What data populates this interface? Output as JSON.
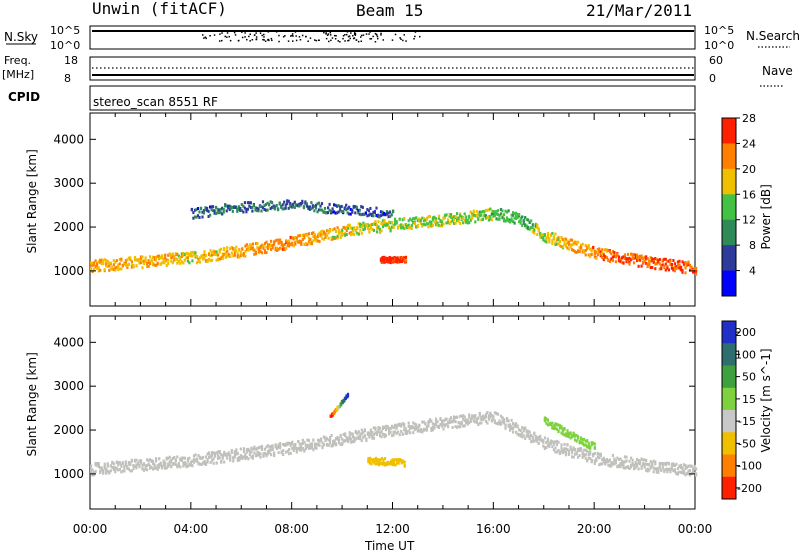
{
  "header": {
    "station": "Unwin (fitACF)",
    "beam": "Beam 15",
    "date": "21/Mar/2011"
  },
  "strip_panels": {
    "nsky": {
      "label": "N.Sky",
      "left_ticks": [
        "10^5",
        "10^0"
      ],
      "right_ticks": [
        "10^5",
        "10^0"
      ],
      "right_label": "N.Search"
    },
    "freq": {
      "label_top": "Freq.",
      "label_unit": "[MHz]",
      "left_ticks": [
        "18",
        "8"
      ],
      "right_ticks": [
        "60",
        "0"
      ],
      "right_label": "Nave"
    },
    "cpid": {
      "label": "CPID",
      "text": "stereo_scan 8551 RF"
    }
  },
  "chart_data": [
    {
      "type": "heatmap",
      "title": "",
      "xlabel": "",
      "ylabel": "Slant Range [km]",
      "xlim": [
        0,
        24
      ],
      "ylim": [
        200,
        4600
      ],
      "x_ticks": [
        "00:00",
        "04:00",
        "08:00",
        "12:00",
        "16:00",
        "20:00",
        "00:00"
      ],
      "y_ticks": [
        1000,
        2000,
        3000,
        4000
      ],
      "colorbar": {
        "label": "Power [dB]",
        "ticks": [
          4,
          8,
          12,
          16,
          20,
          24,
          28
        ],
        "colors": [
          "#0000ff",
          "#2d3c9b",
          "#2e8b57",
          "#43c143",
          "#f0c000",
          "#ff8000",
          "#ff2000"
        ]
      },
      "series": [
        {
          "kind": "main_band",
          "x": [
            0,
            2,
            4,
            6,
            8,
            10,
            12,
            14,
            16,
            17,
            18,
            20,
            22,
            24
          ],
          "y": [
            1100,
            1200,
            1300,
            1450,
            1650,
            1900,
            2050,
            2150,
            2300,
            2200,
            1800,
            1400,
            1200,
            1050
          ],
          "level_db": [
            22,
            22,
            20,
            22,
            24,
            20,
            18,
            18,
            16,
            14,
            18,
            24,
            26,
            26
          ]
        },
        {
          "kind": "upper_layer",
          "x": [
            4,
            6,
            8,
            10,
            12
          ],
          "y": [
            2300,
            2450,
            2500,
            2400,
            2300
          ],
          "level_db": [
            8,
            10,
            10,
            8,
            8
          ]
        },
        {
          "kind": "hot_spot",
          "x": [
            11.5,
            12.5
          ],
          "y": [
            1250,
            1250
          ],
          "level_db": [
            28,
            28
          ]
        }
      ]
    },
    {
      "type": "heatmap",
      "title": "",
      "xlabel": "Time UT",
      "ylabel": "Slant Range [km]",
      "xlim": [
        0,
        24
      ],
      "ylim": [
        200,
        4600
      ],
      "x_ticks": [
        "00:00",
        "04:00",
        "08:00",
        "12:00",
        "16:00",
        "20:00",
        "00:00"
      ],
      "y_ticks": [
        1000,
        2000,
        3000,
        4000
      ],
      "colorbar": {
        "label": "Velocity [m s^-1]",
        "unit_suffix": "-1",
        "ticks": [
          200,
          100,
          50,
          15,
          -15,
          -50,
          -100,
          -200
        ],
        "colors": [
          "#1f2fc8",
          "#2e6e6e",
          "#3fa03f",
          "#7fd23f",
          "#c8c8c8",
          "#f0c000",
          "#ff8000",
          "#ff2000"
        ]
      },
      "series": [
        {
          "kind": "ground_scatter",
          "x": [
            0,
            4,
            8,
            12,
            16,
            18,
            20,
            24
          ],
          "y": [
            1100,
            1300,
            1600,
            2000,
            2300,
            1700,
            1350,
            1050
          ],
          "velocity": [
            0,
            0,
            0,
            0,
            0,
            0,
            0,
            0
          ]
        },
        {
          "kind": "westward_flow",
          "x": [
            18,
            19,
            20
          ],
          "y": [
            2200,
            1900,
            1600
          ],
          "velocity": [
            30,
            30,
            30
          ]
        },
        {
          "kind": "sunward_patch",
          "x": [
            11,
            12.5
          ],
          "y": [
            1300,
            1250
          ],
          "velocity": [
            -60,
            -60
          ]
        },
        {
          "kind": "streak",
          "x": [
            9.5,
            10.2
          ],
          "y": [
            2300,
            2800
          ],
          "velocity": [
            -220,
            220
          ]
        }
      ]
    }
  ]
}
